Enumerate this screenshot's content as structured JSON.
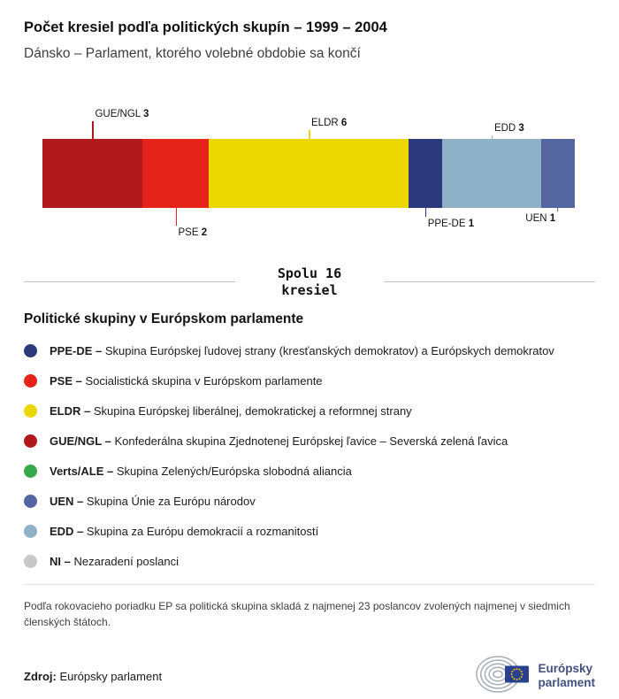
{
  "header": {
    "title": "Počet kresiel podľa politických skupín – 1999 – 2004",
    "subtitle": "Dánsko – Parlament, ktorého volebné obdobie sa končí"
  },
  "chart_data": {
    "type": "bar",
    "stacked": true,
    "orientation": "horizontal",
    "total_seats": 16,
    "total": {
      "line1": "Spolu 16",
      "line2": "kresiel"
    },
    "segments": [
      {
        "group": "GUE/NGL",
        "seats": 3,
        "color": "#b0191b",
        "label_side": "above",
        "label_tier": 3
      },
      {
        "group": "PSE",
        "seats": 2,
        "color": "#e5231b",
        "label_side": "below",
        "label_tier": 3
      },
      {
        "group": "ELDR",
        "seats": 6,
        "color": "#ecd800",
        "label_side": "above",
        "label_tier": 2
      },
      {
        "group": "PPE-DE",
        "seats": 1,
        "color": "#2c3a7c",
        "label_side": "below",
        "label_tier": 2
      },
      {
        "group": "EDD",
        "seats": 3,
        "color": "#8fb1c8",
        "label_side": "above",
        "label_tier": 1
      },
      {
        "group": "UEN",
        "seats": 1,
        "color": "#5565a0",
        "label_side": "below",
        "label_tier": 1,
        "label_align": "right"
      }
    ]
  },
  "legend": {
    "heading": "Politické skupiny v Európskom parlamente",
    "items": [
      {
        "abbr": "PPE-DE –",
        "desc": "Skupina Európskej ľudovej strany (kresťanských demokratov) a Európskych demokratov",
        "color": "#2c3a7c"
      },
      {
        "abbr": "PSE –",
        "desc": "Socialistická skupina v Európskom parlamente",
        "color": "#e5231b"
      },
      {
        "abbr": "ELDR –",
        "desc": "Skupina Európskej liberálnej, demokratickej a reformnej strany",
        "color": "#ecd800"
      },
      {
        "abbr": "GUE/NGL –",
        "desc": "Konfederálna skupina Zjednotenej Európskej ľavice – Severská zelená ľavica",
        "color": "#b0191b"
      },
      {
        "abbr": "Verts/ALE –",
        "desc": "Skupina Zelených/Európska slobodná aliancia",
        "color": "#38a84d"
      },
      {
        "abbr": "UEN –",
        "desc": "Skupina Únie za Európu národov",
        "color": "#5565a0"
      },
      {
        "abbr": "EDD –",
        "desc": "Skupina za Európu demokracií a rozmanitostí",
        "color": "#8fb1c8"
      },
      {
        "abbr": "NI –",
        "desc": "Nezaradení poslanci",
        "color": "#c8c8c8"
      }
    ]
  },
  "footnote": "Podľa rokovacieho poriadku EP sa politická skupina skladá z najmenej 23 poslancov zvolených najmenej v siedmich členských štátoch.",
  "source": {
    "label": "Zdroj:",
    "text": "Európsky parlament"
  },
  "logo": {
    "line1": "Európsky",
    "line2": "parlament"
  }
}
